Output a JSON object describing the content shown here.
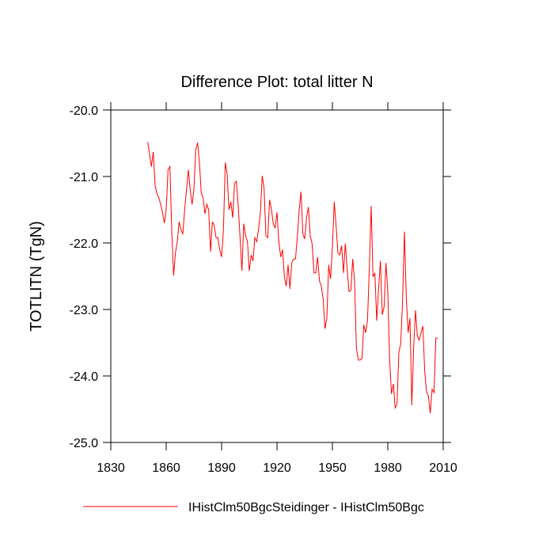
{
  "chart_data": {
    "type": "line",
    "title": "Difference Plot: total litter N",
    "y_label": "TOTLITN  (TgN)",
    "x": [
      1850,
      1851,
      1852,
      1853,
      1854,
      1855,
      1856,
      1857,
      1858,
      1859,
      1860,
      1861,
      1862,
      1863,
      1864,
      1865,
      1866,
      1867,
      1868,
      1869,
      1870,
      1871,
      1872,
      1873,
      1874,
      1875,
      1876,
      1877,
      1878,
      1879,
      1880,
      1881,
      1882,
      1883,
      1884,
      1885,
      1886,
      1887,
      1888,
      1889,
      1890,
      1891,
      1892,
      1893,
      1894,
      1895,
      1896,
      1897,
      1898,
      1899,
      1900,
      1901,
      1902,
      1903,
      1904,
      1905,
      1906,
      1907,
      1908,
      1909,
      1910,
      1911,
      1912,
      1913,
      1914,
      1915,
      1916,
      1917,
      1918,
      1919,
      1920,
      1921,
      1922,
      1923,
      1924,
      1925,
      1926,
      1927,
      1928,
      1929,
      1930,
      1931,
      1932,
      1933,
      1934,
      1935,
      1936,
      1937,
      1938,
      1939,
      1940,
      1941,
      1942,
      1943,
      1944,
      1945,
      1946,
      1947,
      1948,
      1949,
      1950,
      1951,
      1952,
      1953,
      1954,
      1955,
      1956,
      1957,
      1958,
      1959,
      1960,
      1961,
      1962,
      1963,
      1964,
      1965,
      1966,
      1967,
      1968,
      1969,
      1970,
      1971,
      1972,
      1973,
      1974,
      1975,
      1976,
      1977,
      1978,
      1979,
      1980,
      1981,
      1982,
      1983,
      1984,
      1985,
      1986,
      1987,
      1988,
      1989,
      1990,
      1991,
      1992,
      1993,
      1994,
      1995,
      1996,
      1997,
      1998,
      1999,
      2000,
      2001,
      2002,
      2003,
      2004,
      2005,
      2006,
      2007
    ],
    "series": [
      {
        "name": "IHistClm50BgcSteidinger - IHistClm50Bgc",
        "color": "#ff0000",
        "values": [
          -20.48,
          -20.67,
          -20.85,
          -20.63,
          -21.14,
          -21.26,
          -21.32,
          -21.42,
          -21.54,
          -21.7,
          -21.5,
          -20.9,
          -20.85,
          -21.8,
          -22.49,
          -22.15,
          -21.98,
          -21.68,
          -21.8,
          -21.86,
          -21.5,
          -21.2,
          -20.9,
          -21.2,
          -21.42,
          -21.2,
          -20.6,
          -20.49,
          -20.79,
          -21.26,
          -21.32,
          -21.56,
          -21.42,
          -21.5,
          -22.13,
          -21.68,
          -21.74,
          -21.92,
          -21.92,
          -22.1,
          -22.21,
          -21.8,
          -20.79,
          -20.96,
          -21.5,
          -21.38,
          -21.62,
          -21.11,
          -21.07,
          -21.44,
          -21.92,
          -22.42,
          -21.71,
          -21.89,
          -21.98,
          -22.42,
          -22.18,
          -22.27,
          -21.92,
          -21.98,
          -21.8,
          -21.54,
          -20.99,
          -21.18,
          -21.89,
          -21.92,
          -21.35,
          -21.5,
          -21.71,
          -21.77,
          -21.54,
          -21.98,
          -22.21,
          -22.1,
          -22.51,
          -22.65,
          -22.33,
          -22.69,
          -22.3,
          -22.24,
          -22.24,
          -21.92,
          -21.5,
          -21.23,
          -21.86,
          -21.94,
          -21.62,
          -21.46,
          -21.89,
          -22.01,
          -22.45,
          -22.45,
          -22.21,
          -22.57,
          -22.65,
          -22.85,
          -23.29,
          -23.13,
          -22.33,
          -22.54,
          -22.06,
          -21.38,
          -21.74,
          -22.15,
          -22.18,
          -22.04,
          -22.45,
          -22.01,
          -22.39,
          -22.73,
          -22.71,
          -22.24,
          -22.57,
          -23.58,
          -23.76,
          -23.76,
          -23.74,
          -23.23,
          -23.35,
          -23.17,
          -22.39,
          -21.44,
          -22.51,
          -22.45,
          -23.17,
          -22.69,
          -22.27,
          -23.08,
          -22.96,
          -22.3,
          -22.73,
          -23.76,
          -24.27,
          -24.12,
          -24.48,
          -24.42,
          -23.64,
          -23.52,
          -22.87,
          -21.83,
          -22.81,
          -23.35,
          -23.13,
          -24.44,
          -23.58,
          -23.01,
          -23.4,
          -23.46,
          -23.35,
          -23.25,
          -23.94,
          -24.24,
          -24.3,
          -24.56,
          -24.2,
          -24.25,
          -23.43,
          -23.43
        ]
      }
    ],
    "xlim": [
      1830,
      2010
    ],
    "xticks": [
      1830,
      1860,
      1890,
      1920,
      1950,
      1980,
      2010
    ],
    "ylim": [
      -25,
      -20
    ],
    "yticks": [
      {
        "value": -25,
        "label": "-25.0"
      },
      {
        "value": -24,
        "label": "-24.0"
      },
      {
        "value": -23,
        "label": "-23.0"
      },
      {
        "value": -22,
        "label": "-22.0"
      },
      {
        "value": -21,
        "label": "-21.0"
      },
      {
        "value": -20,
        "label": "-20.0"
      }
    ],
    "legend": "bottom"
  }
}
